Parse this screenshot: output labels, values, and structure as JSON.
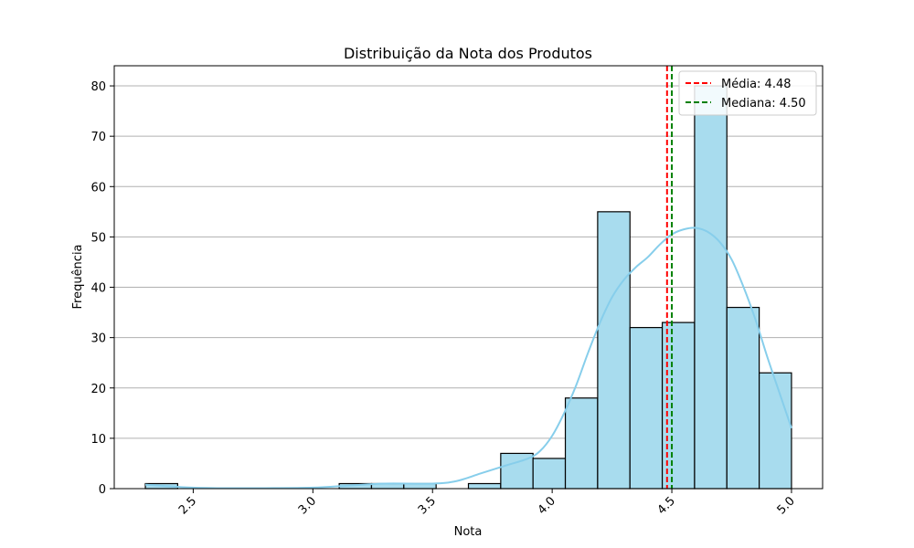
{
  "chart_data": {
    "type": "bar",
    "subtype": "histogram",
    "title": "Distribuição da Nota dos Produtos",
    "xlabel": "Nota",
    "ylabel": "Frequência",
    "xlim": [
      2.17,
      5.13
    ],
    "ylim": [
      0,
      84
    ],
    "xticks": [
      2.5,
      3.0,
      3.5,
      4.0,
      4.5,
      5.0
    ],
    "xtick_labels": [
      "2.5",
      "3.0",
      "3.5",
      "4.0",
      "4.5",
      "5.0"
    ],
    "yticks": [
      0,
      10,
      20,
      30,
      40,
      50,
      60,
      70,
      80
    ],
    "ytick_labels": [
      "0",
      "10",
      "20",
      "30",
      "40",
      "50",
      "60",
      "70",
      "80"
    ],
    "grid": "y",
    "bin_edges": [
      2.3,
      2.435,
      2.57,
      2.705,
      2.84,
      2.975,
      3.11,
      3.245,
      3.38,
      3.515,
      3.65,
      3.785,
      3.92,
      4.055,
      4.19,
      4.325,
      4.46,
      4.595,
      4.73,
      4.865,
      5.0
    ],
    "values": [
      1,
      0,
      0,
      0,
      0,
      0,
      1,
      1,
      1,
      0,
      1,
      7,
      6,
      18,
      55,
      32,
      33,
      80,
      36,
      23
    ],
    "bar_color": "#a8dcee",
    "bar_edge_color": "#000000",
    "kde": {
      "color": "#87ceeb",
      "x": [
        2.3,
        2.45,
        2.6,
        2.8,
        3.0,
        3.15,
        3.3,
        3.5,
        3.6,
        3.7,
        3.8,
        3.9,
        3.95,
        4.0,
        4.05,
        4.1,
        4.15,
        4.2,
        4.25,
        4.3,
        4.35,
        4.4,
        4.45,
        4.5,
        4.55,
        4.6,
        4.65,
        4.7,
        4.75,
        4.8,
        4.85,
        4.9,
        4.95,
        5.0
      ],
      "y": [
        0.8,
        0.3,
        0.1,
        0.1,
        0.2,
        0.6,
        1.0,
        1.0,
        1.5,
        3.0,
        4.5,
        6.0,
        7.5,
        10.5,
        15.0,
        20.5,
        27.0,
        33.0,
        38.0,
        41.5,
        44.0,
        46.0,
        48.5,
        50.5,
        51.5,
        51.8,
        51.0,
        49.0,
        45.5,
        40.0,
        33.5,
        26.0,
        19.0,
        12.0
      ]
    },
    "reference_lines": [
      {
        "name": "media",
        "label": "Média: 4.48",
        "x": 4.48,
        "color": "#ff0000",
        "style": "dashed"
      },
      {
        "name": "mediana",
        "label": "Mediana: 4.50",
        "x": 4.5,
        "color": "#008000",
        "style": "dashed"
      }
    ],
    "legend_position": "top-right"
  }
}
